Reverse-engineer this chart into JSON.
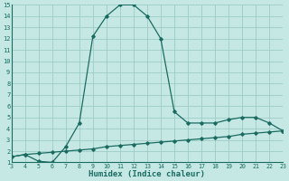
{
  "xlabel": "Humidex (Indice chaleur)",
  "ylabel": "",
  "background_color": "#c5e8e5",
  "grid_color": "#9dccc7",
  "line_color": "#1a6b60",
  "marker_color": "#1a6b60",
  "xmin": 3,
  "xmax": 23,
  "ymin": 1,
  "ymax": 15,
  "curve1_x": [
    3,
    4,
    5,
    6,
    7,
    8,
    9,
    10,
    11,
    12,
    13,
    14,
    15,
    16,
    17,
    18,
    19,
    20,
    21,
    22,
    23
  ],
  "curve1_y": [
    1.5,
    1.7,
    1.1,
    1.0,
    2.4,
    4.5,
    12.2,
    14.0,
    15.0,
    15.0,
    14.0,
    12.0,
    5.5,
    4.5,
    4.5,
    4.5,
    4.8,
    5.0,
    5.0,
    4.5,
    3.8
  ],
  "curve2_x": [
    3,
    4,
    5,
    6,
    7,
    8,
    9,
    10,
    11,
    12,
    13,
    14,
    15,
    16,
    17,
    18,
    19,
    20,
    21,
    22,
    23
  ],
  "curve2_y": [
    1.5,
    1.7,
    1.8,
    1.9,
    2.0,
    2.1,
    2.2,
    2.4,
    2.5,
    2.6,
    2.7,
    2.8,
    2.9,
    3.0,
    3.1,
    3.2,
    3.3,
    3.5,
    3.6,
    3.7,
    3.8
  ],
  "yticks": [
    1,
    2,
    3,
    4,
    5,
    6,
    7,
    8,
    9,
    10,
    11,
    12,
    13,
    14,
    15
  ],
  "xticks": [
    3,
    4,
    5,
    6,
    7,
    8,
    9,
    10,
    11,
    12,
    13,
    14,
    15,
    16,
    17,
    18,
    19,
    20,
    21,
    22,
    23
  ]
}
